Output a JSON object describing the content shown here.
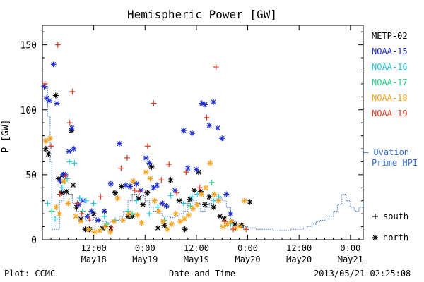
{
  "colors": {
    "METP-02": "#000000",
    "NOAA-15": "#1f2fd0",
    "NOAA-16": "#1ec8e6",
    "NOAA-17": "#24d68a",
    "NOAA-18": "#f5a21b",
    "NOAA-19": "#e43b1e",
    "ovation": "#2f6fd6"
  },
  "chart_data": {
    "type": "scatter",
    "title": "Hemispheric Power [GW]",
    "ylabel": "P [GW]",
    "xlabel": "Date and Time",
    "ylim": [
      0,
      165
    ],
    "xlim_hours": [
      0,
      66
    ],
    "y_ticks": [
      0,
      50,
      100,
      150
    ],
    "x_ticks": [
      {
        "hours": 12,
        "time": "12:00",
        "date": "May18"
      },
      {
        "hours": 24,
        "time": "0:00",
        "date": "May19"
      },
      {
        "hours": 36,
        "time": "12:00",
        "date": "May19"
      },
      {
        "hours": 48,
        "time": "0:00",
        "date": "May20"
      },
      {
        "hours": 60,
        "time": "12:00",
        "date": "May20"
      },
      {
        "hours": 72,
        "time": "0:00",
        "date": "May21"
      }
    ],
    "legend": [
      "METP-02",
      "NOAA-15",
      "NOAA-16",
      "NOAA-17",
      "NOAA-18",
      "NOAA-19"
    ],
    "ovation_label": [
      "— Ovation",
      "Prime HPI"
    ],
    "marker_legend": [
      {
        "symbol": "+",
        "label": "south"
      },
      {
        "symbol": "*",
        "label": "north"
      }
    ],
    "ovation": {
      "name": "Ovation Prime HPI",
      "x": [
        0,
        1.2,
        1.8,
        2.2,
        3,
        4,
        5,
        6,
        7,
        8,
        9,
        10,
        11,
        12,
        13,
        14,
        15,
        16,
        17,
        18,
        19,
        20,
        21,
        22,
        23,
        24,
        25,
        26,
        27,
        28,
        29,
        30,
        31,
        32,
        33,
        34,
        35,
        36,
        37,
        38,
        39,
        40,
        41,
        42,
        43,
        44,
        45,
        46,
        47,
        48,
        49,
        50,
        51,
        52,
        53,
        54,
        55,
        56,
        57,
        58,
        59,
        60,
        61,
        62,
        63,
        64,
        65,
        66,
        67,
        68,
        69,
        70,
        71,
        72,
        73,
        74,
        75
      ],
      "y": [
        118,
        95,
        60,
        8,
        8,
        30,
        40,
        35,
        28,
        22,
        18,
        15,
        15,
        17,
        15,
        14,
        13,
        14,
        15,
        18,
        22,
        30,
        35,
        35,
        34,
        30,
        25,
        22,
        20,
        18,
        18,
        17,
        18,
        20,
        22,
        28,
        30,
        28,
        22,
        25,
        28,
        30,
        32,
        30,
        25,
        15,
        10,
        10,
        10,
        9,
        9,
        8,
        8,
        8,
        8,
        7,
        7,
        7,
        7,
        8,
        8,
        8,
        9,
        10,
        12,
        14,
        15,
        16,
        18,
        22,
        27,
        35,
        30,
        25,
        22,
        25,
        28
      ]
    },
    "series": [
      {
        "name": "METP-02",
        "marker": "asterisk",
        "x": [
          0.8,
          1.4,
          3.1,
          3.8,
          4.5,
          5,
          5.6,
          6.8,
          7.2,
          8,
          9,
          10,
          11,
          12,
          13,
          14,
          16,
          17,
          18.5,
          20,
          21,
          22.5,
          23.5,
          24.5,
          25.5,
          27,
          28.5,
          30,
          32,
          33.3,
          34.5,
          35.5,
          36.5,
          37,
          38,
          39,
          40,
          41.5,
          42.5,
          45,
          46.5,
          48.5
        ],
        "y": [
          70,
          66,
          111,
          47,
          36,
          50,
          37,
          84,
          42,
          25,
          16,
          8,
          8,
          20,
          15,
          9,
          9,
          36,
          41,
          18,
          18,
          32,
          27,
          36,
          56,
          9,
          11,
          46,
          30,
          8,
          31,
          38,
          52,
          37,
          27,
          33,
          25,
          18,
          16,
          12,
          11,
          29
        ]
      },
      {
        "name": "NOAA-15",
        "marker": "asterisk",
        "x": [
          0.4,
          1,
          1.6,
          2.6,
          3.4,
          4.2,
          4.8,
          5.4,
          6.2,
          6.9,
          7.3,
          8.5,
          9.5,
          10.5,
          11.5,
          13,
          14.5,
          16,
          18,
          19.5,
          20.5,
          22,
          23,
          24.2,
          25,
          26,
          26.8,
          28,
          29,
          31,
          33,
          34,
          35,
          36,
          37.3,
          38,
          39,
          40,
          41,
          42,
          43,
          44
        ],
        "y": [
          118,
          109,
          107,
          135,
          105,
          45,
          50,
          50,
          68,
          86,
          70,
          27,
          30,
          18,
          22,
          15,
          22,
          43,
          74,
          42,
          41,
          43,
          38,
          63,
          59,
          40,
          42,
          28,
          26,
          38,
          84,
          55,
          82,
          54,
          105,
          104,
          88,
          106,
          86,
          78,
          35,
          20
        ]
      },
      {
        "name": "NOAA-16",
        "marker": "plus",
        "x": [
          1.2,
          3,
          4.6,
          5.8,
          6.3,
          7.5,
          8.7,
          10.2,
          12,
          14.5,
          17,
          20,
          22,
          25,
          27,
          30,
          33,
          35,
          36.2,
          40,
          41.2,
          44
        ],
        "y": [
          28,
          16,
          40,
          47,
          60,
          59,
          32,
          30,
          28,
          18,
          15,
          22,
          30,
          20,
          25,
          34,
          28,
          33,
          35,
          30,
          33,
          12
        ]
      },
      {
        "name": "NOAA-17",
        "marker": "plus",
        "x": [
          2.2,
          5.2,
          9.4,
          15,
          21,
          28.5,
          34.6,
          39.6
        ],
        "y": [
          22,
          45,
          22,
          12,
          20,
          15,
          26,
          44
        ]
      },
      {
        "name": "NOAA-18",
        "marker": "asterisk",
        "x": [
          0.8,
          1.8,
          3.2,
          4,
          5,
          6,
          7.8,
          9,
          10.8,
          12.2,
          13.4,
          14.8,
          15.9,
          16.7,
          17.6,
          18.8,
          20.2,
          21.2,
          22.2,
          23.2,
          24.2,
          25.2,
          26.2,
          27.2,
          28.2,
          29.2,
          30.2,
          31.2,
          32.2,
          33.2,
          34.2,
          35.2,
          36.2,
          37.2,
          38.2,
          39.2,
          40.2,
          41.2,
          42.2,
          43.2,
          44.2,
          45.2,
          46.2,
          47.2
        ],
        "y": [
          76,
          78,
          25,
          20,
          45,
          28,
          18,
          14,
          8,
          6,
          7,
          10,
          6,
          14,
          32,
          15,
          20,
          45,
          19,
          13,
          52,
          47,
          30,
          22,
          14,
          8,
          12,
          20,
          14,
          16,
          19,
          24,
          27,
          35,
          40,
          59,
          35,
          30,
          10,
          12,
          14,
          9,
          10,
          30
        ]
      },
      {
        "name": "NOAA-19",
        "marker": "plus",
        "x": [
          0.6,
          2,
          3.6,
          4.1,
          5.4,
          6.4,
          7,
          8.2,
          9.2,
          11,
          13.6,
          16.2,
          18.4,
          19.8,
          21.6,
          22.6,
          24.6,
          26,
          27.8,
          29.6,
          31.4,
          33.6,
          36.8,
          38.4,
          40.6,
          42.6,
          44.6,
          47.6
        ],
        "y": [
          120,
          72,
          150,
          35,
          49,
          90,
          114,
          28,
          20,
          16,
          33,
          9,
          55,
          63,
          38,
          37,
          72,
          105,
          46,
          58,
          36,
          52,
          40,
          94,
          133,
          14,
          8,
          8
        ]
      }
    ]
  },
  "footer": {
    "plot_label": "Plot: CCMC",
    "axis_title": "Date and Time",
    "timestamp": "2013/05/21 02:25:08"
  }
}
